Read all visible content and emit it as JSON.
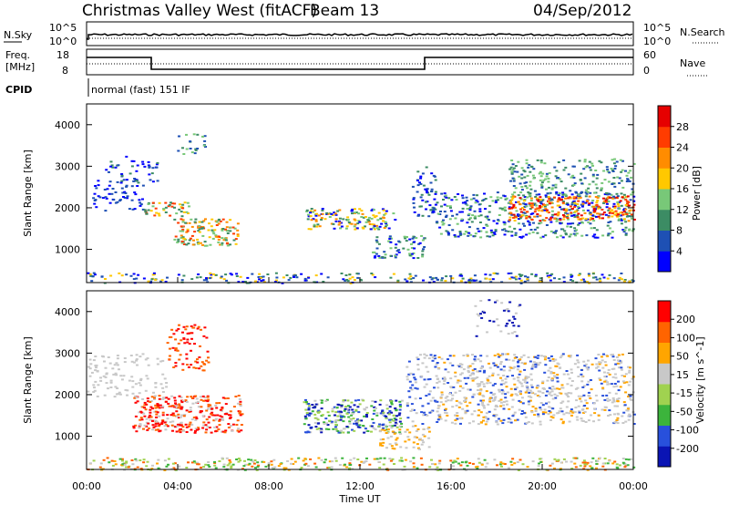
{
  "header": {
    "title": "Christmas Valley West (fitACF)",
    "beam": "Beam 13",
    "date": "04/Sep/2012"
  },
  "param_panels": {
    "nsky": {
      "label": "N.Sky",
      "ticks": [
        "10^5",
        "10^0"
      ],
      "right_label": "N.Search",
      "right_ticks": [
        "10^5",
        "10^0"
      ]
    },
    "freq": {
      "label_line1": "Freq.",
      "label_line2": "[MHz]",
      "ticks": [
        "18",
        "8"
      ],
      "right_label": "Nave",
      "right_ticks": [
        "60",
        "0"
      ]
    },
    "cpid": {
      "label": "CPID",
      "value": "normal (fast) 151 IF"
    }
  },
  "chart_data": [
    {
      "type": "heatmap",
      "name": "power",
      "ylabel": "Slant Range [km]",
      "xlabel": "",
      "y_ticks": [
        "4000",
        "3000",
        "2000",
        "1000"
      ],
      "colorbar": {
        "label": "Power [dB]",
        "ticks": [
          "28",
          "24",
          "20",
          "16",
          "12",
          "8",
          "4"
        ],
        "colors": [
          "#0000ff",
          "#1e50b4",
          "#3c8c64",
          "#78c878",
          "#ffc800",
          "#ff8c00",
          "#ff3c00",
          "#e60000"
        ]
      },
      "regions_note": "echo regions shown as colored patches"
    },
    {
      "type": "heatmap",
      "name": "velocity",
      "ylabel": "Slant Range [km]",
      "xlabel": "Time UT",
      "y_ticks": [
        "4000",
        "3000",
        "2000",
        "1000"
      ],
      "x_ticks": [
        "00:00",
        "04:00",
        "08:00",
        "12:00",
        "16:00",
        "20:00",
        "00:00"
      ],
      "colorbar": {
        "label": "Velocity [m s^-1]",
        "ticks": [
          "200",
          "100",
          "50",
          "15",
          "-15",
          "-50",
          "-100",
          "-200"
        ],
        "colors": [
          "#0a14b4",
          "#2850dc",
          "#3cb43c",
          "#a0d250",
          "#c8c8c8",
          "#ffa500",
          "#ff6400",
          "#ff0000"
        ]
      }
    }
  ]
}
